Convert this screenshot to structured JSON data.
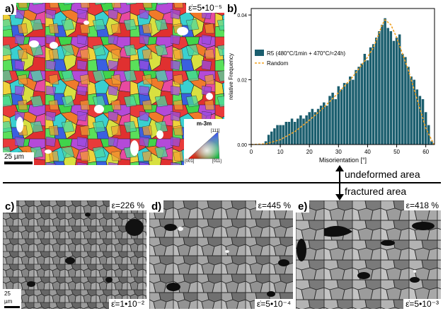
{
  "panel_a": {
    "tag": "a)",
    "strain_rate": "ε̇=5•10⁻⁵",
    "scalebar": "25 µm",
    "ipf_key": {
      "title": "m-3m",
      "corner_top": "[111]",
      "corner_left": "[001]",
      "corner_right": "[011]"
    }
  },
  "panel_b": {
    "tag": "b)"
  },
  "panel_c": {
    "tag": "c)",
    "strain": "ε=226 %",
    "strain_rate": "ε̇=1•10⁻²",
    "scalebar": "25 µm"
  },
  "panel_d": {
    "tag": "d)",
    "strain": "ε=445 %",
    "strain_rate": "ε̇=5•10⁻⁴"
  },
  "panel_e": {
    "tag": "e)",
    "strain": "ε=418 %",
    "strain_rate": "ε̇=5•10⁻³"
  },
  "areas": {
    "upper": "undeformed area",
    "lower": "fractured area"
  },
  "chart_data": {
    "type": "bar",
    "xlabel": "Misorientation [°]",
    "ylabel": "relative Frequency",
    "xlim": [
      0,
      63
    ],
    "ylim": [
      0,
      0.042
    ],
    "xticks": [
      0,
      10,
      20,
      30,
      40,
      50,
      60
    ],
    "yticks": [
      0.0,
      0.02,
      0.04
    ],
    "ytick_labels": [
      "0.00",
      "0.02",
      "0.04"
    ],
    "legend_position": "left",
    "bar_color": "#1b5e6e",
    "random_color": "#f0a020",
    "series": [
      {
        "name": "R5 (480°C/1min + 470°C/≈24h)",
        "kind": "bar",
        "x": [
          5,
          6,
          7,
          8,
          9,
          10,
          11,
          12,
          13,
          14,
          15,
          16,
          17,
          18,
          19,
          20,
          21,
          22,
          23,
          24,
          25,
          26,
          27,
          28,
          29,
          30,
          31,
          32,
          33,
          34,
          35,
          36,
          37,
          38,
          39,
          40,
          41,
          42,
          43,
          44,
          45,
          46,
          47,
          48,
          49,
          50,
          51,
          52,
          53,
          54,
          55,
          56,
          57,
          58,
          59,
          60,
          61,
          62
        ],
        "values": [
          0.001,
          0.003,
          0.004,
          0.005,
          0.006,
          0.006,
          0.006,
          0.007,
          0.007,
          0.008,
          0.007,
          0.008,
          0.009,
          0.008,
          0.009,
          0.01,
          0.011,
          0.01,
          0.011,
          0.012,
          0.013,
          0.012,
          0.015,
          0.016,
          0.014,
          0.018,
          0.017,
          0.019,
          0.019,
          0.021,
          0.02,
          0.023,
          0.024,
          0.025,
          0.028,
          0.026,
          0.03,
          0.031,
          0.033,
          0.035,
          0.037,
          0.039,
          0.036,
          0.035,
          0.032,
          0.033,
          0.034,
          0.028,
          0.027,
          0.024,
          0.021,
          0.02,
          0.017,
          0.015,
          0.014,
          0.01,
          0.006,
          0.001
        ]
      },
      {
        "name": "Random",
        "kind": "line",
        "x": [
          0,
          5,
          10,
          15,
          20,
          25,
          30,
          35,
          40,
          42,
          44,
          45,
          46,
          48,
          50,
          52,
          54,
          56,
          58,
          60,
          62.8
        ],
        "values": [
          0,
          0.0002,
          0.0015,
          0.004,
          0.0075,
          0.0115,
          0.016,
          0.021,
          0.027,
          0.03,
          0.0345,
          0.037,
          0.0385,
          0.037,
          0.033,
          0.028,
          0.023,
          0.017,
          0.011,
          0.005,
          0
        ]
      }
    ]
  }
}
